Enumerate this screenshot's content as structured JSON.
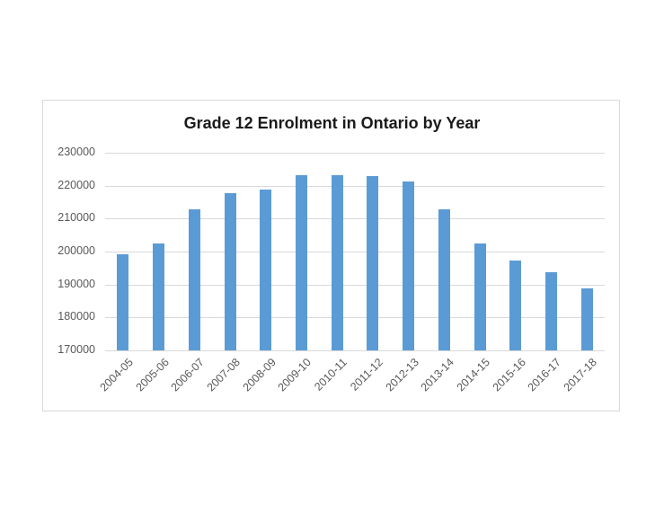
{
  "chart_data": {
    "type": "bar",
    "title": "Grade 12 Enrolment in Ontario by Year",
    "xlabel": "",
    "ylabel": "",
    "categories": [
      "2004-05",
      "2005-06",
      "2006-07",
      "2007-08",
      "2008-09",
      "2009-10",
      "2010-11",
      "2011-12",
      "2012-13",
      "2013-14",
      "2014-15",
      "2015-16",
      "2016-17",
      "2017-18"
    ],
    "values": [
      199100,
      202400,
      212900,
      217600,
      218800,
      223300,
      223200,
      223000,
      221200,
      212700,
      202500,
      197200,
      193600,
      188800
    ],
    "ylim": [
      170000,
      230000
    ],
    "yticks": [
      "170000",
      "180000",
      "190000",
      "200000",
      "210000",
      "220000",
      "230000"
    ],
    "grid": true,
    "legend": null,
    "bar_color": "#5B9BD5",
    "grid_color": "#D9D9D9"
  }
}
